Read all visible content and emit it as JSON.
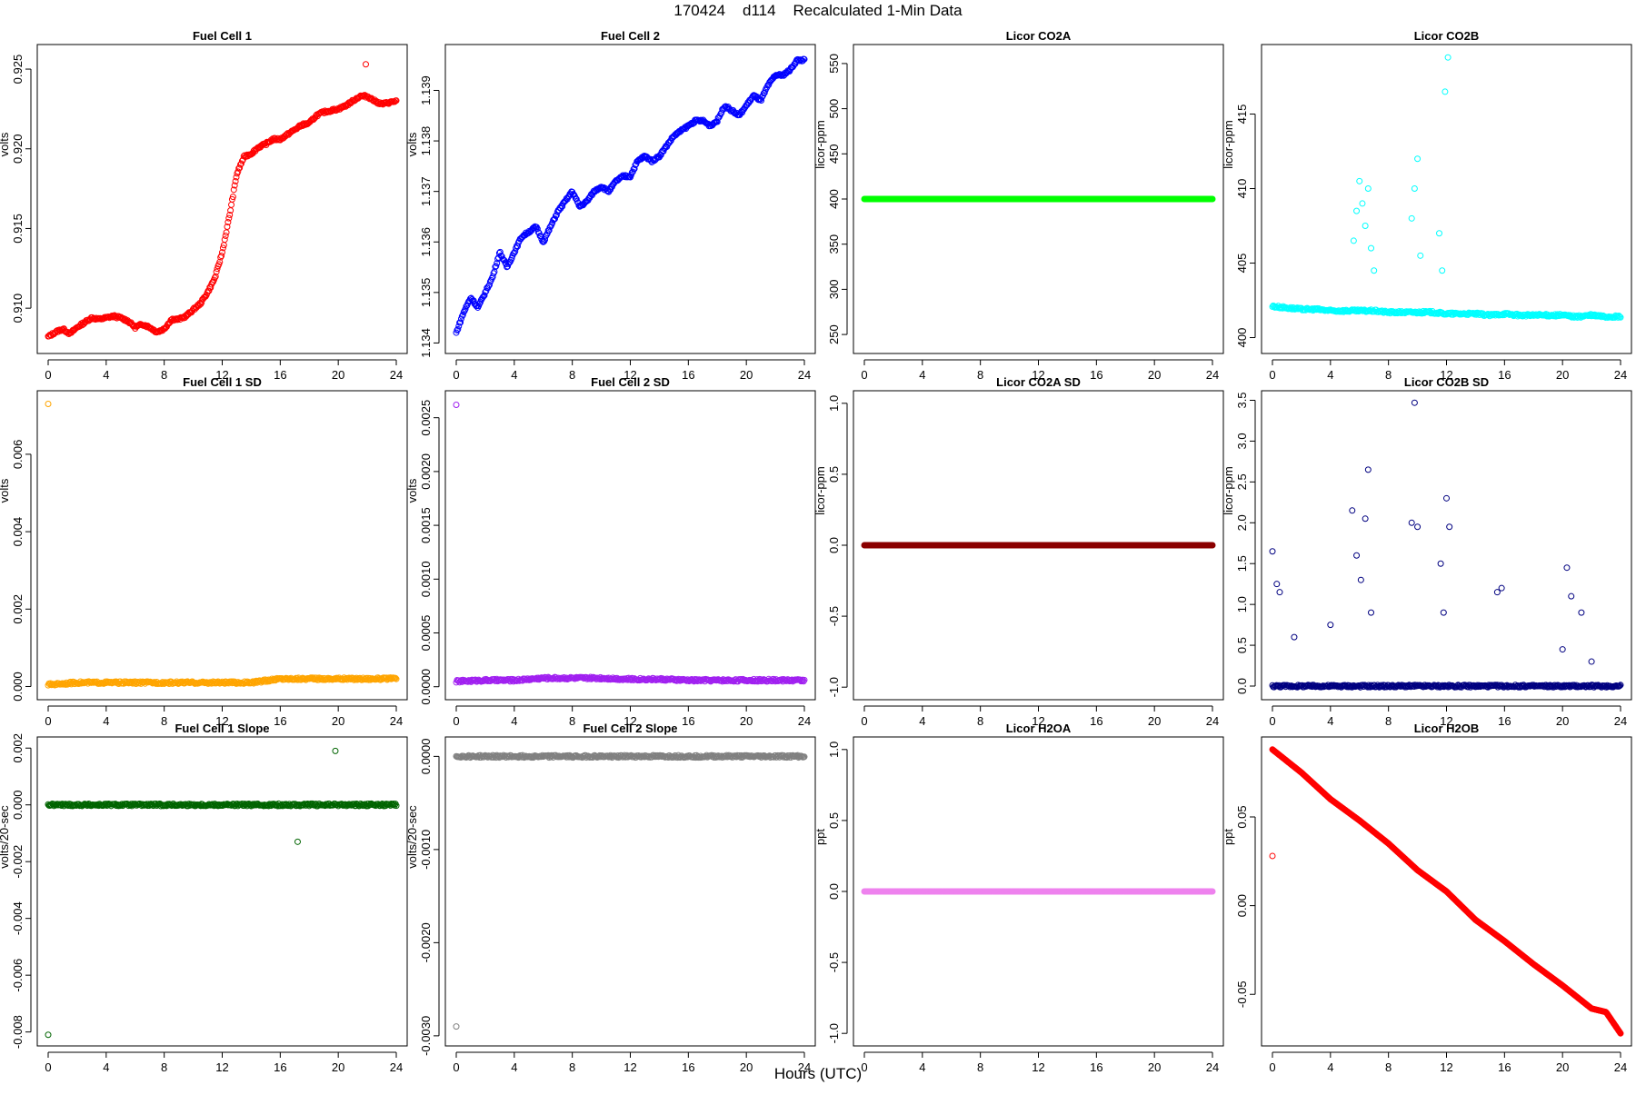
{
  "figure": {
    "title": "170424    d114    Recalculated 1-Min Data",
    "xlabel": "Hours (UTC)"
  },
  "chart_data": [
    {
      "type": "scatter",
      "title": "Fuel Cell 1",
      "ylabel": "volts",
      "xlim": [
        0,
        24
      ],
      "xticks": [
        0,
        4,
        8,
        12,
        16,
        20,
        24
      ],
      "ylim": [
        0.9075,
        0.9262
      ],
      "yticks": [
        0.91,
        0.915,
        0.92,
        0.925
      ],
      "ytick_labels": [
        "0.910",
        "0.915",
        "0.920",
        "0.925"
      ],
      "color": "#ff0000",
      "point_style": "open",
      "series": [
        {
          "x": [
            0,
            0.5,
            1,
            1.5,
            2,
            2.5,
            3,
            3.5,
            4,
            4.5,
            5,
            5.5,
            6,
            6.5,
            7,
            7.5,
            8,
            8.5,
            9,
            9.5,
            10,
            10.5,
            11,
            11.5,
            12,
            12.5,
            13,
            13.5,
            14,
            14.5,
            15,
            15.5,
            16,
            16.5,
            17,
            17.5,
            18,
            18.5,
            19,
            19.5,
            20,
            20.5,
            21,
            21.5,
            22,
            22.5,
            23,
            23.5,
            24
          ],
          "y": [
            0.9082,
            0.9085,
            0.9087,
            0.9084,
            0.9088,
            0.9091,
            0.9094,
            0.9093,
            0.9094,
            0.9095,
            0.9094,
            0.9092,
            0.9088,
            0.909,
            0.9088,
            0.9085,
            0.9087,
            0.9093,
            0.9093,
            0.9095,
            0.9099,
            0.9103,
            0.911,
            0.9119,
            0.9135,
            0.9158,
            0.9184,
            0.9195,
            0.9197,
            0.9201,
            0.9203,
            0.9206,
            0.9206,
            0.9209,
            0.9212,
            0.9215,
            0.9216,
            0.9221,
            0.9223,
            0.9224,
            0.9225,
            0.9227,
            0.923,
            0.9233,
            0.9233,
            0.923,
            0.9228,
            0.9229,
            0.923
          ]
        }
      ],
      "outliers": [
        {
          "x": 21.9,
          "y": 0.9253
        }
      ]
    },
    {
      "type": "scatter",
      "title": "Fuel Cell 2",
      "ylabel": "volts",
      "xlim": [
        0,
        24
      ],
      "xticks": [
        0,
        4,
        8,
        12,
        16,
        20,
        24
      ],
      "ylim": [
        1.1339,
        1.1398
      ],
      "yticks": [
        1.134,
        1.135,
        1.136,
        1.137,
        1.138,
        1.139
      ],
      "ytick_labels": [
        "1.134",
        "1.135",
        "1.136",
        "1.137",
        "1.138",
        "1.139"
      ],
      "color": "#0000ff",
      "point_style": "open",
      "series": [
        {
          "x": [
            0,
            0.5,
            1,
            1.5,
            2,
            2.5,
            3,
            3.5,
            4,
            4.5,
            5,
            5.5,
            6,
            6.5,
            7,
            7.5,
            8,
            8.5,
            9,
            9.5,
            10,
            10.5,
            11,
            11.5,
            12,
            12.5,
            13,
            13.5,
            14,
            14.5,
            15,
            15.5,
            16,
            16.5,
            17,
            17.5,
            18,
            18.5,
            19,
            19.5,
            20,
            20.5,
            21,
            21.5,
            22,
            22.5,
            23,
            23.5,
            24
          ],
          "y": [
            1.1342,
            1.1346,
            1.1349,
            1.1347,
            1.135,
            1.1353,
            1.1358,
            1.1355,
            1.1358,
            1.1361,
            1.1362,
            1.1363,
            1.136,
            1.1363,
            1.1366,
            1.1368,
            1.137,
            1.1367,
            1.1368,
            1.137,
            1.1371,
            1.137,
            1.1372,
            1.1373,
            1.1373,
            1.1376,
            1.1377,
            1.1376,
            1.1377,
            1.1379,
            1.1381,
            1.1382,
            1.1383,
            1.1384,
            1.1384,
            1.1383,
            1.1384,
            1.1387,
            1.1386,
            1.1385,
            1.1387,
            1.1389,
            1.1388,
            1.1391,
            1.1393,
            1.1393,
            1.1394,
            1.1396,
            1.1396
          ]
        }
      ]
    },
    {
      "type": "scatter",
      "title": "Licor CO2A",
      "ylabel": "licor-ppm",
      "xlim": [
        0,
        24
      ],
      "xticks": [
        0,
        4,
        8,
        12,
        16,
        20,
        24
      ],
      "ylim": [
        235,
        565
      ],
      "yticks": [
        250,
        300,
        350,
        400,
        450,
        500,
        550
      ],
      "ytick_labels": [
        "250",
        "300",
        "350",
        "400",
        "450",
        "500",
        "550"
      ],
      "color": "#00ff00",
      "point_style": "filled",
      "series": [
        {
          "x": [
            0,
            24
          ],
          "y": [
            400,
            400
          ]
        }
      ]
    },
    {
      "type": "scatter",
      "title": "Licor CO2B",
      "ylabel": "licor-ppm",
      "xlim": [
        0,
        24
      ],
      "xticks": [
        0,
        4,
        8,
        12,
        16,
        20,
        24
      ],
      "ylim": [
        399.3,
        419.3
      ],
      "yticks": [
        400,
        405,
        410,
        415
      ],
      "ytick_labels": [
        "400",
        "405",
        "410",
        "415"
      ],
      "color": "#00ffff",
      "point_style": "open",
      "series": [
        {
          "x": [
            0,
            1,
            2,
            3,
            4,
            5,
            6,
            7,
            8,
            9,
            10,
            11,
            12,
            13,
            14,
            15,
            16,
            17,
            18,
            19,
            20,
            21,
            22,
            23,
            24
          ],
          "y": [
            402.1,
            402.0,
            401.9,
            401.9,
            401.8,
            401.8,
            401.8,
            401.8,
            401.7,
            401.7,
            401.7,
            401.7,
            401.6,
            401.6,
            401.6,
            401.5,
            401.6,
            401.5,
            401.5,
            401.5,
            401.5,
            401.4,
            401.5,
            401.4,
            401.4
          ]
        }
      ],
      "spikes": [
        {
          "x": [
            5.6,
            5.8,
            6.0,
            6.2,
            6.4,
            6.6,
            6.8,
            7.0,
            9.6,
            9.8,
            10.0,
            10.2,
            11.5,
            11.7,
            11.9,
            12.1
          ],
          "y": [
            406.5,
            408.5,
            410.5,
            409.0,
            407.5,
            410.0,
            406.0,
            404.5,
            408.0,
            410.0,
            412.0,
            405.5,
            407.0,
            404.5,
            416.5,
            418.8
          ]
        }
      ]
    },
    {
      "type": "scatter",
      "title": "Fuel Cell 1 SD",
      "ylabel": "volts",
      "xlim": [
        0,
        24
      ],
      "xticks": [
        0,
        4,
        8,
        12,
        16,
        20,
        24
      ],
      "ylim": [
        -0.0002,
        0.0075
      ],
      "yticks": [
        0.0,
        0.002,
        0.004,
        0.006
      ],
      "ytick_labels": [
        "0.000",
        "0.002",
        "0.004",
        "0.006"
      ],
      "color": "#ffa500",
      "point_style": "open",
      "series": [
        {
          "x": [
            0,
            2,
            4,
            6,
            8,
            10,
            12,
            14,
            16,
            18,
            20,
            22,
            24
          ],
          "y": [
            5e-05,
            0.0001,
            0.0001,
            0.0001,
            0.0001,
            0.0001,
            0.0001,
            0.0001,
            0.0002,
            0.0002,
            0.0002,
            0.0002,
            0.0002
          ]
        }
      ],
      "outliers": [
        {
          "x": 0,
          "y": 0.0073
        }
      ]
    },
    {
      "type": "scatter",
      "title": "Fuel Cell 2 SD",
      "ylabel": "volts",
      "xlim": [
        0,
        24
      ],
      "xticks": [
        0,
        4,
        8,
        12,
        16,
        20,
        24
      ],
      "ylim": [
        -7e-05,
        0.0027
      ],
      "yticks": [
        0.0,
        0.0005,
        0.001,
        0.0015,
        0.002,
        0.0025
      ],
      "ytick_labels": [
        "0.0000",
        "0.0005",
        "0.0010",
        "0.0015",
        "0.0020",
        "0.0025"
      ],
      "color": "#a020f0",
      "point_style": "open",
      "series": [
        {
          "x": [
            0,
            2,
            4,
            6,
            8,
            10,
            12,
            14,
            16,
            18,
            20,
            22,
            24
          ],
          "y": [
            5e-05,
            6e-05,
            6e-05,
            8e-05,
            8e-05,
            8e-05,
            7e-05,
            7e-05,
            6e-05,
            6e-05,
            6e-05,
            6e-05,
            6e-05
          ]
        }
      ],
      "outliers": [
        {
          "x": 0,
          "y": 0.00262
        }
      ]
    },
    {
      "type": "scatter",
      "title": "Licor CO2A SD",
      "ylabel": "licor-ppm",
      "xlim": [
        0,
        24
      ],
      "xticks": [
        0,
        4,
        8,
        12,
        16,
        20,
        24
      ],
      "ylim": [
        -1.05,
        1.05
      ],
      "yticks": [
        -1.0,
        -0.5,
        0.0,
        0.5,
        1.0
      ],
      "ytick_labels": [
        "-1.0",
        "-0.5",
        "0.0",
        "0.5",
        "1.0"
      ],
      "color": "#8b0000",
      "point_style": "filled",
      "series": [
        {
          "x": [
            0,
            24
          ],
          "y": [
            0,
            0
          ]
        }
      ]
    },
    {
      "type": "scatter",
      "title": "Licor CO2B SD",
      "ylabel": "licor-ppm",
      "xlim": [
        0,
        24
      ],
      "xticks": [
        0,
        4,
        8,
        12,
        16,
        20,
        24
      ],
      "ylim": [
        -0.1,
        3.55
      ],
      "yticks": [
        0.0,
        0.5,
        1.0,
        1.5,
        2.0,
        2.5,
        3.0,
        3.5
      ],
      "ytick_labels": [
        "0.0",
        "0.5",
        "1.0",
        "1.5",
        "2.0",
        "2.5",
        "3.0",
        "3.5"
      ],
      "color": "#000080",
      "point_style": "open",
      "series": [
        {
          "x": [
            0,
            24
          ],
          "y": [
            0,
            0
          ]
        }
      ],
      "spikes": [
        {
          "x": [
            0,
            0.3,
            0.5,
            1.5,
            4.0,
            5.5,
            5.8,
            6.1,
            6.4,
            6.6,
            6.8,
            9.6,
            9.8,
            10.0,
            11.6,
            11.8,
            12.0,
            12.2,
            15.5,
            15.8,
            20.0,
            20.3,
            20.6,
            21.3,
            22.0
          ],
          "y": [
            1.65,
            1.25,
            1.15,
            0.6,
            0.75,
            2.15,
            1.6,
            1.3,
            2.05,
            2.65,
            0.9,
            2.0,
            3.47,
            1.95,
            1.5,
            0.9,
            2.3,
            1.95,
            1.15,
            1.2,
            0.45,
            1.45,
            1.1,
            0.9,
            0.3
          ]
        }
      ]
    },
    {
      "type": "scatter",
      "title": "Fuel Cell 1 Slope",
      "ylabel": "volts/20-sec",
      "xlim": [
        0,
        24
      ],
      "xticks": [
        0,
        4,
        8,
        12,
        16,
        20,
        24
      ],
      "ylim": [
        -0.0083,
        0.0022
      ],
      "yticks": [
        -0.008,
        -0.006,
        -0.004,
        -0.002,
        0.0,
        0.002
      ],
      "ytick_labels": [
        "-0.008",
        "-0.006",
        "-0.004",
        "-0.002",
        "0.000",
        "0.002"
      ],
      "color": "#006400",
      "point_style": "open",
      "series": [
        {
          "x": [
            0,
            2,
            4,
            6,
            8,
            10,
            12,
            14,
            16,
            18,
            20,
            22,
            24
          ],
          "y": [
            0,
            0,
            0,
            0,
            0,
            0,
            0,
            0,
            0,
            0,
            0,
            0,
            0
          ]
        }
      ],
      "outliers": [
        {
          "x": 0,
          "y": -0.0081
        },
        {
          "x": 19.8,
          "y": 0.0019
        },
        {
          "x": 17.2,
          "y": -0.0013
        }
      ]
    },
    {
      "type": "scatter",
      "title": "Fuel Cell 2 Slope",
      "ylabel": "volts/20-sec",
      "xlim": [
        0,
        24
      ],
      "xticks": [
        0,
        4,
        8,
        12,
        16,
        20,
        24
      ],
      "ylim": [
        -0.00305,
        0.00015
      ],
      "yticks": [
        -0.003,
        -0.002,
        -0.001,
        0.0
      ],
      "ytick_labels": [
        "-0.0030",
        "-0.0020",
        "-0.0010",
        "0.0000"
      ],
      "color": "#808080",
      "point_style": "open",
      "series": [
        {
          "x": [
            0,
            2,
            4,
            6,
            8,
            10,
            12,
            14,
            16,
            18,
            20,
            22,
            24
          ],
          "y": [
            0,
            0,
            0,
            0,
            0,
            0,
            0,
            0,
            0,
            0,
            0,
            0,
            0
          ]
        }
      ],
      "outliers": [
        {
          "x": 0,
          "y": -0.0029
        }
      ]
    },
    {
      "type": "scatter",
      "title": "Licor H2OA",
      "ylabel": "ppt",
      "xlim": [
        0,
        24
      ],
      "xticks": [
        0,
        4,
        8,
        12,
        16,
        20,
        24
      ],
      "ylim": [
        -1.05,
        1.05
      ],
      "yticks": [
        -1.0,
        -0.5,
        0.0,
        0.5,
        1.0
      ],
      "ytick_labels": [
        "-1.0",
        "-0.5",
        "0.0",
        "0.5",
        "1.0"
      ],
      "color": "#ee82ee",
      "point_style": "filled",
      "series": [
        {
          "x": [
            0,
            24
          ],
          "y": [
            0,
            0
          ]
        }
      ]
    },
    {
      "type": "scatter",
      "title": "Licor H2OB",
      "ylabel": "ppt",
      "xlim": [
        0,
        24
      ],
      "xticks": [
        0,
        4,
        8,
        12,
        16,
        20,
        24
      ],
      "ylim": [
        -0.076,
        0.092
      ],
      "yticks": [
        -0.05,
        0.0,
        0.05
      ],
      "ytick_labels": [
        "-0.05",
        "0.00",
        "0.05"
      ],
      "color": "#ff0000",
      "point_style": "filled",
      "series": [
        {
          "x": [
            0,
            2,
            4,
            6,
            8,
            10,
            12,
            14,
            16,
            18,
            20,
            22,
            23,
            24
          ],
          "y": [
            0.088,
            0.075,
            0.06,
            0.048,
            0.035,
            0.02,
            0.008,
            -0.008,
            -0.02,
            -0.033,
            -0.045,
            -0.058,
            -0.06,
            -0.072
          ]
        }
      ],
      "outliers": [
        {
          "x": 0,
          "y": 0.028
        }
      ]
    }
  ]
}
